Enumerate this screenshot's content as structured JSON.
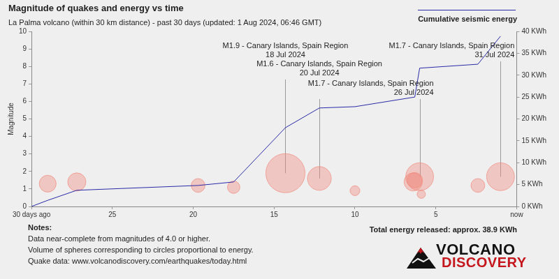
{
  "chart_data": {
    "type": "bubble",
    "title": "Magnitude of quakes and energy vs time",
    "subtitle": "La Palma volcano (within 30 km distance) - past 30 days (updated: 1 Aug 2024, 06:46 GMT)",
    "y_label": "Magnitude",
    "xlim": [
      30,
      0
    ],
    "xticks": [
      {
        "value": 30,
        "label": "30 days ago"
      },
      25,
      20,
      15,
      10,
      5,
      {
        "value": 0,
        "label": "now"
      }
    ],
    "ylim": [
      0,
      10
    ],
    "yticks": [
      0,
      1,
      2,
      3,
      4,
      5,
      6,
      7,
      8,
      9,
      10
    ],
    "y2lim": [
      0,
      40
    ],
    "y2ticks": [
      {
        "value": 0,
        "label": "0 KWh"
      },
      {
        "value": 5,
        "label": "5 KWh"
      },
      {
        "value": 10,
        "label": "10 KWh"
      },
      {
        "value": 15,
        "label": "15 KWh"
      },
      {
        "value": 20,
        "label": "20 KWh"
      },
      {
        "value": 25,
        "label": "25 KWh"
      },
      {
        "value": 30,
        "label": "30 KWh"
      },
      {
        "value": 35,
        "label": "35 KWh"
      },
      {
        "value": 40,
        "label": "40 KWh"
      }
    ],
    "grid": false,
    "legend": "top right",
    "series": [
      {
        "type": "bubble",
        "color": "#f08a7e",
        "x": [
          29.0,
          27.2,
          19.7,
          17.5,
          14.3,
          12.2,
          10.0,
          6.4,
          6.3,
          6.0,
          5.9,
          2.4,
          1.0
        ],
        "values": [
          1.3,
          1.4,
          1.2,
          1.1,
          1.9,
          1.6,
          0.9,
          1.4,
          1.5,
          1.7,
          0.7,
          1.2,
          1.7
        ],
        "energy_kwh": [
          1.0,
          1.25,
          0.55,
          0.4,
          12.5,
          2.8,
          0.2,
          1.25,
          0.75,
          4.5,
          0.12,
          0.55,
          4.5
        ]
      },
      {
        "name": "Cumulative seismic energy",
        "type": "line",
        "axis": "y2",
        "color": "#2a2aa8",
        "x": [
          30,
          29.0,
          27.2,
          19.7,
          17.5,
          14.3,
          12.2,
          10.0,
          6.3,
          6.0,
          2.4,
          1.0
        ],
        "values": [
          0,
          1.4,
          3.7,
          4.8,
          5.6,
          18.0,
          22.5,
          22.8,
          25.0,
          31.6,
          32.5,
          38.9
        ]
      }
    ],
    "annotations": [
      {
        "text": "M1.9 - Canary Islands, Spain Region",
        "date": "18 Jul 2024",
        "x": 14.3,
        "y": 1.9
      },
      {
        "text": "M1.6 - Canary Islands, Spain Region",
        "date": "20 Jul 2024",
        "x": 12.2,
        "y": 1.6
      },
      {
        "text": "M1.7 - Canary Islands, Spain Region",
        "date": "26 Jul 2024",
        "x": 6.0,
        "y": 1.7
      },
      {
        "text": "M1.7 - Canary Islands, Spain Region",
        "date": "31 Jul 2024",
        "x": 1.0,
        "y": 1.7
      }
    ],
    "notes": {
      "title": "Notes:",
      "lines": [
        "Data near-complete from magnitudes of 4.0 or higher.",
        "Volume of spheres corresponding to circles proportional to energy.",
        "Quake data: www.volcanodiscovery.com/earthquakes/today.html"
      ]
    },
    "total": "Total energy released: approx. 38.9 KWh",
    "logo": [
      "VOLCANO",
      "DISCOVERY"
    ]
  }
}
